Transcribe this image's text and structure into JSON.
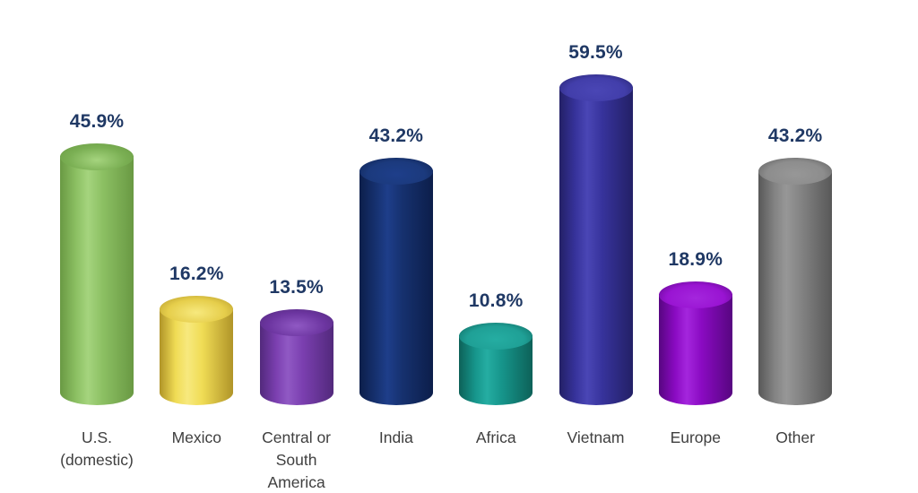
{
  "chart_data": {
    "type": "bar",
    "subtype": "3d-cylinder",
    "title": "",
    "xlabel": "",
    "ylabel": "",
    "categories": [
      "U.S. (domestic)",
      "Mexico",
      "Central or South America",
      "India",
      "Africa",
      "Vietnam",
      "Europe",
      "Other"
    ],
    "values": [
      45.9,
      16.2,
      13.5,
      43.2,
      10.8,
      59.5,
      18.9,
      43.2
    ],
    "value_labels": [
      "45.9%",
      "16.2%",
      "13.5%",
      "43.2%",
      "10.8%",
      "59.5%",
      "18.9%",
      "43.2%"
    ],
    "category_label_lines": [
      [
        "U.S.",
        "(domestic)"
      ],
      [
        "Mexico"
      ],
      [
        "Central or",
        "South",
        "America"
      ],
      [
        "India"
      ],
      [
        "Africa"
      ],
      [
        "Vietnam"
      ],
      [
        "Europe"
      ],
      [
        "Other"
      ]
    ],
    "bar_colors": [
      {
        "name": "green",
        "body": "#8CC063",
        "light": "#A5D47E",
        "edge": "#699943",
        "cap": "#7AAF53"
      },
      {
        "name": "yellow",
        "body": "#F0DC55",
        "light": "#F7E97E",
        "edge": "#B09428",
        "cap": "#E6CE4B"
      },
      {
        "name": "purple",
        "body": "#7B3FB0",
        "light": "#9059C4",
        "edge": "#52297C",
        "cap": "#6C35A0"
      },
      {
        "name": "navy",
        "body": "#16316F",
        "light": "#1E3E8A",
        "edge": "#0C1E4A",
        "cap": "#1B3A7D"
      },
      {
        "name": "teal",
        "body": "#16958B",
        "light": "#25ADA2",
        "edge": "#0D6158",
        "cap": "#1FA096"
      },
      {
        "name": "indigo",
        "body": "#37339C",
        "light": "#4A46B5",
        "edge": "#232066",
        "cap": "#423EAA"
      },
      {
        "name": "magenta",
        "body": "#8A0AC2",
        "light": "#A426DD",
        "edge": "#570680",
        "cap": "#9914D2"
      },
      {
        "name": "gray",
        "body": "#838383",
        "light": "#979797",
        "edge": "#585858",
        "cap": "#8D8D8D"
      }
    ],
    "value_label_color": "#1F3864",
    "category_label_color": "#3F3F3F",
    "background_color": "#FFFFFF",
    "ylim": [
      0,
      65
    ],
    "grid": false,
    "legend": false,
    "axes_visible": false
  }
}
